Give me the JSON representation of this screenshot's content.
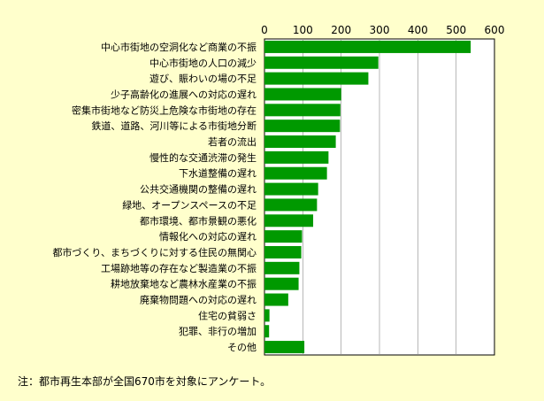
{
  "chart_data": {
    "type": "bar",
    "orientation": "horizontal",
    "categories": [
      "中心市街地の空洞化など商業の不振",
      "中心市街地の人口の減少",
      "遊び、賑わいの場の不足",
      "少子高齢化の進展への対応の遅れ",
      "密集市街地など防災上危険な市街地の存在",
      "鉄道、道路、河川等による市街地分断",
      "若者の流出",
      "慢性的な交通渋滞の発生",
      "下水道整備の遅れ",
      "公共交通機関の整備の遅れ",
      "緑地、オープンスペースの不足",
      "都市環境、都市景観の悪化",
      "情報化への対応の遅れ",
      "都市づくり、まちづくりに対する住民の無関心",
      "工場跡地等の存在など製造業の不振",
      "耕地放棄地など農林水産業の不振",
      "廃棄物問題への対応の遅れ",
      "住宅の貧弱さ",
      "犯罪、非行の増加",
      "その他"
    ],
    "values": [
      538,
      297,
      271,
      200,
      198,
      197,
      186,
      167,
      163,
      140,
      137,
      127,
      98,
      96,
      91,
      89,
      62,
      13,
      12,
      104
    ],
    "xlim": [
      0,
      600
    ],
    "xticks": [
      "0",
      "100",
      "200",
      "300",
      "400",
      "500",
      "600"
    ],
    "grid": true,
    "bar_color": "#009900",
    "title": "",
    "xlabel": "",
    "ylabel": ""
  },
  "note": "注：都市再生本部が全国670市を対象にアンケート。"
}
